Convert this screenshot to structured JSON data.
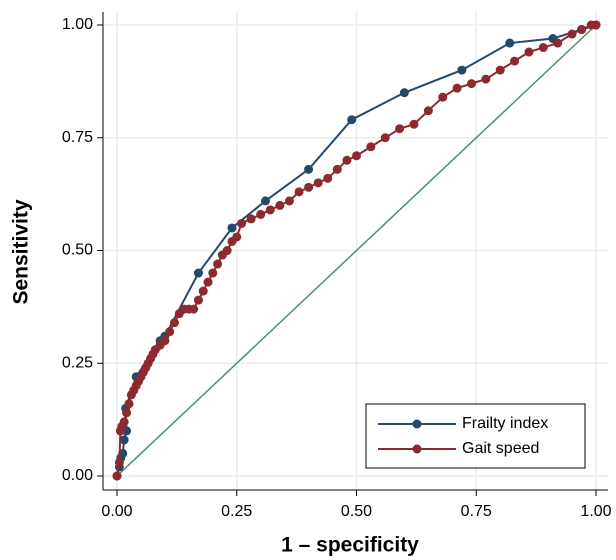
{
  "chart_data": {
    "type": "line",
    "x_label": "1 – specificity",
    "y_label": "Sensitivity",
    "xlim": [
      0,
      1
    ],
    "ylim": [
      0,
      1
    ],
    "xticks": [
      {
        "value": 0,
        "label": "0.00"
      },
      {
        "value": 0.25,
        "label": "0.25"
      },
      {
        "value": 0.5,
        "label": "0.50"
      },
      {
        "value": 0.75,
        "label": "0.75"
      },
      {
        "value": 1,
        "label": "1.00"
      }
    ],
    "yticks": [
      {
        "value": 0,
        "label": "0.00"
      },
      {
        "value": 0.25,
        "label": "0.25"
      },
      {
        "value": 0.5,
        "label": "0.50"
      },
      {
        "value": 0.75,
        "label": "0.75"
      },
      {
        "value": 1,
        "label": "1.00"
      }
    ],
    "grid": true,
    "legend": "lower right",
    "reference_line": {
      "x": [
        0,
        1
      ],
      "values": [
        0,
        1
      ],
      "color": "#4e8f73"
    },
    "series": [
      {
        "name": "Frailty index",
        "color": "#25496b",
        "x": [
          0,
          0.005,
          0.008,
          0.012,
          0.015,
          0.02,
          0.018,
          0.04,
          0.09,
          0.1,
          0.17,
          0.24,
          0.31,
          0.4,
          0.49,
          0.6,
          0.72,
          0.82,
          0.91,
          0.97,
          1
        ],
        "values": [
          0,
          0.02,
          0.04,
          0.05,
          0.08,
          0.1,
          0.15,
          0.22,
          0.3,
          0.31,
          0.45,
          0.55,
          0.61,
          0.68,
          0.79,
          0.85,
          0.9,
          0.96,
          0.97,
          0.99,
          1
        ]
      },
      {
        "name": "Gait speed",
        "color": "#8c2a2f",
        "x": [
          0,
          0.005,
          0.007,
          0.01,
          0.015,
          0.02,
          0.025,
          0.03,
          0.035,
          0.04,
          0.045,
          0.05,
          0.055,
          0.06,
          0.065,
          0.07,
          0.075,
          0.08,
          0.09,
          0.1,
          0.11,
          0.12,
          0.13,
          0.14,
          0.15,
          0.16,
          0.17,
          0.18,
          0.19,
          0.2,
          0.21,
          0.22,
          0.23,
          0.24,
          0.25,
          0.26,
          0.28,
          0.3,
          0.32,
          0.34,
          0.36,
          0.38,
          0.4,
          0.42,
          0.44,
          0.46,
          0.48,
          0.5,
          0.53,
          0.56,
          0.59,
          0.62,
          0.65,
          0.68,
          0.71,
          0.74,
          0.77,
          0.8,
          0.83,
          0.86,
          0.89,
          0.92,
          0.95,
          0.97,
          0.99,
          1
        ],
        "values": [
          0,
          0.03,
          0.1,
          0.11,
          0.12,
          0.14,
          0.16,
          0.18,
          0.19,
          0.2,
          0.21,
          0.22,
          0.23,
          0.24,
          0.25,
          0.26,
          0.27,
          0.28,
          0.29,
          0.3,
          0.32,
          0.34,
          0.36,
          0.37,
          0.37,
          0.37,
          0.39,
          0.41,
          0.43,
          0.45,
          0.47,
          0.49,
          0.5,
          0.52,
          0.53,
          0.56,
          0.57,
          0.58,
          0.59,
          0.6,
          0.61,
          0.63,
          0.64,
          0.65,
          0.66,
          0.68,
          0.7,
          0.71,
          0.73,
          0.75,
          0.77,
          0.78,
          0.81,
          0.84,
          0.86,
          0.87,
          0.88,
          0.9,
          0.92,
          0.94,
          0.95,
          0.96,
          0.98,
          0.99,
          1,
          1
        ]
      }
    ]
  }
}
